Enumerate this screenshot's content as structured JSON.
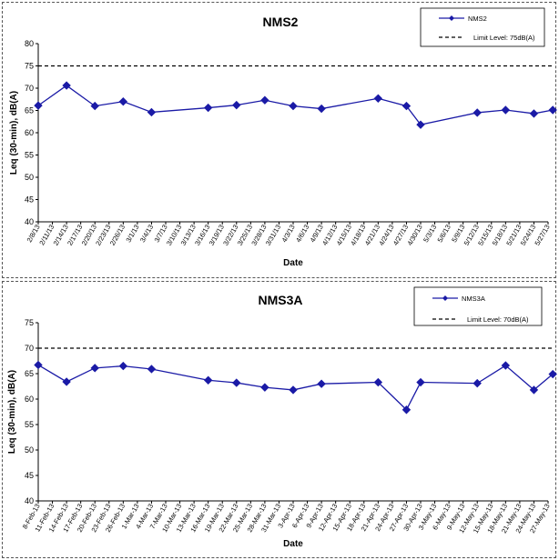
{
  "chart_data": [
    {
      "type": "line",
      "title": "NMS2",
      "xlabel": "Date",
      "ylabel": "Leq (30-min), dB(A)",
      "ylim": [
        40,
        80
      ],
      "yticks": [
        40,
        45,
        50,
        55,
        60,
        65,
        70,
        75,
        80
      ],
      "categories": [
        "2/8/13",
        "2/11/13",
        "2/14/13",
        "2/17/13",
        "2/20/13",
        "2/23/13",
        "2/26/13",
        "3/1/13",
        "3/4/13",
        "3/7/13",
        "3/10/13",
        "3/13/13",
        "3/16/13",
        "3/19/13",
        "3/22/13",
        "3/25/13",
        "3/28/13",
        "3/31/13",
        "4/3/13",
        "4/6/13",
        "4/9/13",
        "4/12/13",
        "4/15/13",
        "4/18/13",
        "4/21/13",
        "4/24/13",
        "4/27/13",
        "4/30/13",
        "5/3/13",
        "5/6/13",
        "5/9/13",
        "5/12/13",
        "5/15/13",
        "5/18/13",
        "5/21/13",
        "5/24/13",
        "5/27/13"
      ],
      "series": [
        {
          "name": "NMS2",
          "color": "#1a1aa6",
          "marker": "diamond",
          "points": [
            [
              "2/8/13",
              66.1
            ],
            [
              "2/14/13",
              70.6
            ],
            [
              "2/20/13",
              66.0
            ],
            [
              "2/26/13",
              67.0
            ],
            [
              "3/4/13",
              64.6
            ],
            [
              "3/16/13",
              65.6
            ],
            [
              "3/22/13",
              66.2
            ],
            [
              "3/28/13",
              67.3
            ],
            [
              "4/3/13",
              66.0
            ],
            [
              "4/9/13",
              65.4
            ],
            [
              "4/21/13",
              67.7
            ],
            [
              "4/27/13",
              66.0
            ],
            [
              "4/30/13",
              61.8
            ],
            [
              "5/12/13",
              64.5
            ],
            [
              "5/18/13",
              65.1
            ],
            [
              "5/24/13",
              64.3
            ],
            [
              "5/30/13",
              65.1
            ]
          ]
        },
        {
          "name": "Limit Level:  75dB(A)",
          "color": "#000000",
          "style": "dashed",
          "points": [
            [
              "2/8/13",
              75
            ],
            [
              "5/30/13",
              75
            ]
          ]
        }
      ],
      "legend": "top-right",
      "grid": false
    },
    {
      "type": "line",
      "title": "NMS3A",
      "xlabel": "Date",
      "ylabel": "Leq (30-min), dB(A)",
      "ylim": [
        40,
        75
      ],
      "yticks": [
        40,
        45,
        50,
        55,
        60,
        65,
        70,
        75
      ],
      "categories": [
        "8-Feb-13",
        "11-Feb-13",
        "14-Feb-13",
        "17-Feb-13",
        "20-Feb-13",
        "23-Feb-13",
        "26-Feb-13",
        "1-Mar-13",
        "4-Mar-13",
        "7-Mar-13",
        "10-Mar-13",
        "13-Mar-13",
        "16-Mar-13",
        "19-Mar-13",
        "22-Mar-13",
        "25-Mar-13",
        "28-Mar-13",
        "31-Mar-13",
        "3-Apr-13",
        "6-Apr-13",
        "9-Apr-13",
        "12-Apr-13",
        "15-Apr-13",
        "18-Apr-13",
        "21-Apr-13",
        "24-Apr-13",
        "27-Apr-13",
        "30-Apr-13",
        "3-May-13",
        "6-May-13",
        "9-May-13",
        "12-May-13",
        "15-May-13",
        "18-May-13",
        "21-May-13",
        "24-May-13",
        "27-May-13"
      ],
      "series": [
        {
          "name": "NMS3A",
          "color": "#1a1aa6",
          "marker": "diamond",
          "points": [
            [
              "8-Feb-13",
              66.7
            ],
            [
              "14-Feb-13",
              63.4
            ],
            [
              "20-Feb-13",
              66.1
            ],
            [
              "26-Feb-13",
              66.5
            ],
            [
              "4-Mar-13",
              65.9
            ],
            [
              "16-Mar-13",
              63.7
            ],
            [
              "22-Mar-13",
              63.2
            ],
            [
              "28-Mar-13",
              62.3
            ],
            [
              "3-Apr-13",
              61.8
            ],
            [
              "9-Apr-13",
              63.0
            ],
            [
              "21-Apr-13",
              63.3
            ],
            [
              "27-Apr-13",
              57.9
            ],
            [
              "30-Apr-13",
              63.3
            ],
            [
              "12-May-13",
              63.1
            ],
            [
              "18-May-13",
              66.6
            ],
            [
              "24-May-13",
              61.8
            ],
            [
              "30-May-13",
              64.9
            ]
          ]
        },
        {
          "name": "Limit Level:  70dB(A)",
          "color": "#000000",
          "style": "dashed",
          "points": [
            [
              "8-Feb-13",
              70
            ],
            [
              "30-May-13",
              70
            ]
          ]
        }
      ],
      "legend": "top-right",
      "grid": false
    }
  ]
}
